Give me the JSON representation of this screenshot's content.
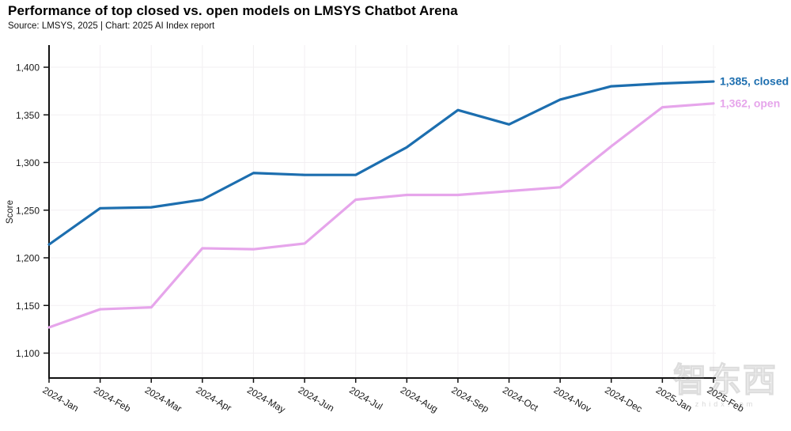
{
  "header": {
    "title": "Performance of top closed vs. open models on LMSYS Chatbot Arena",
    "subtitle": "Source: LMSYS, 2025 | Chart: 2025 AI Index report"
  },
  "watermark": {
    "text": "智东西",
    "sub": "zhidx.com"
  },
  "chart_data": {
    "type": "line",
    "title": "Performance of top closed vs. open models on LMSYS Chatbot Arena",
    "xlabel": "",
    "ylabel": "Score",
    "grid": true,
    "legend_position": "end-of-line labels",
    "ylim": [
      1075,
      1425
    ],
    "yticks": [
      1400,
      1350,
      1300,
      1250,
      1200,
      1150,
      1100
    ],
    "ytick_labels": [
      "1,400",
      "1,350",
      "1,300",
      "1,250",
      "1,200",
      "1,150",
      "1,100"
    ],
    "x": [
      "2024-Jan",
      "2024-Feb",
      "2024-Mar",
      "2024-Apr",
      "2024-May",
      "2024-Jun",
      "2024-Jul",
      "2024-Aug",
      "2024-Sep",
      "2024-Oct",
      "2024-Nov",
      "2024-Dec",
      "2025-Jan",
      "2025-Feb"
    ],
    "series": [
      {
        "name": "closed",
        "color": "#1c6eaf",
        "end_label": "1,385, closed",
        "values": [
          1214,
          1252,
          1253,
          1261,
          1289,
          1287,
          1287,
          1316,
          1355,
          1340,
          1366,
          1380,
          1383,
          1385
        ]
      },
      {
        "name": "open",
        "color": "#e6a5eb",
        "end_label": "1,362, open",
        "values": [
          1127,
          1146,
          1148,
          1210,
          1209,
          1215,
          1261,
          1266,
          1266,
          1270,
          1274,
          1317,
          1358,
          1362
        ]
      }
    ],
    "grid_color": "#f2eff2",
    "axis_color": "#111111",
    "tick_text_color": "#1a1a1a"
  }
}
